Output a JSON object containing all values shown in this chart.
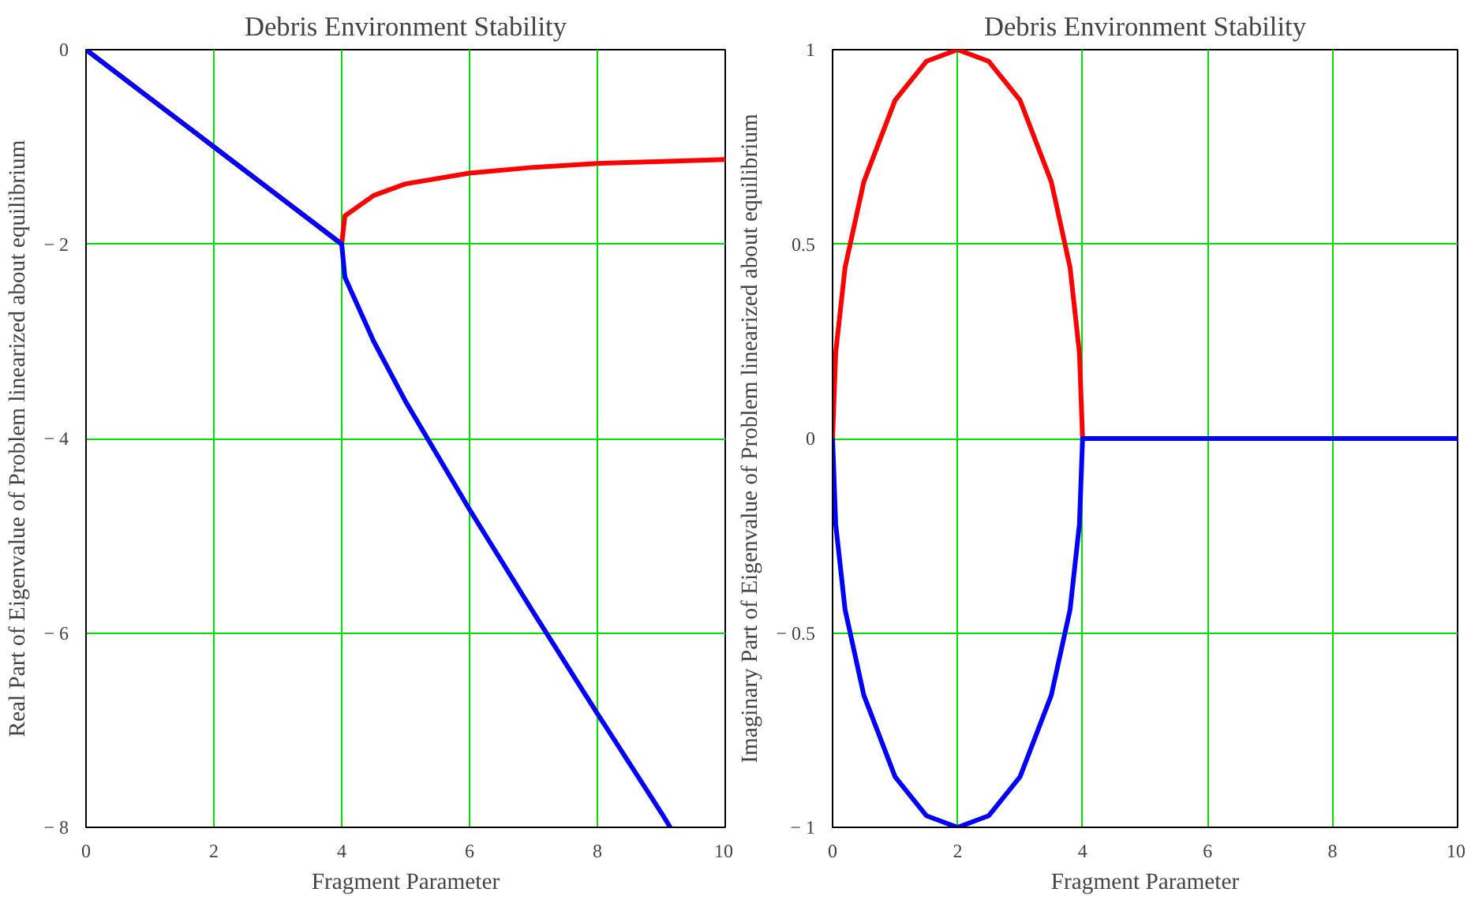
{
  "chart_data": [
    {
      "type": "line",
      "title": "Debris Environment Stability",
      "xlabel": "Fragment Parameter",
      "ylabel": "Real Part of Eigenvalue of Problem linearized about equilibrium",
      "xlim": [
        0,
        10
      ],
      "ylim": [
        -8,
        0
      ],
      "xticks": [
        0,
        2,
        4,
        6,
        8,
        10
      ],
      "yticks": [
        0,
        {
          "value": -2,
          "label": "− 2"
        },
        {
          "value": -4,
          "label": "− 4"
        },
        {
          "value": -6,
          "label": "− 6"
        },
        {
          "value": -8,
          "label": "− 8"
        }
      ],
      "grid": true,
      "series": [
        {
          "color": "#ff0000",
          "x": [
            0,
            4,
            4.05,
            4.2,
            4.5,
            5,
            6,
            7,
            8,
            9,
            10
          ],
          "values": [
            0,
            -2,
            -1.71,
            -1.64,
            -1.5,
            -1.38,
            -1.27,
            -1.21,
            -1.17,
            -1.15,
            -1.13
          ]
        },
        {
          "color": "#0000ff",
          "x": [
            0,
            1,
            2,
            3,
            4,
            4.05,
            4.2,
            4.5,
            5,
            6,
            7,
            8,
            9,
            9.14
          ],
          "values": [
            0,
            -0.5,
            -1,
            -1.5,
            -2,
            -2.34,
            -2.56,
            -3.0,
            -3.62,
            -4.73,
            -5.79,
            -6.83,
            -7.85,
            -8
          ]
        }
      ]
    },
    {
      "type": "line",
      "title": "Debris Environment Stability",
      "xlabel": "Fragment Parameter",
      "ylabel": "Imaginary Part of Eigenvalue of Problem linearized about equilibrium",
      "xlim": [
        0,
        10
      ],
      "ylim": [
        -1,
        1
      ],
      "xticks": [
        0,
        2,
        4,
        6,
        8,
        10
      ],
      "yticks": [
        1,
        0.5,
        0,
        {
          "value": -0.5,
          "label": "− 0.5"
        },
        {
          "value": -1,
          "label": "− 1"
        }
      ],
      "grid": true,
      "series": [
        {
          "color": "#ff0000",
          "x": [
            0,
            0.05,
            0.2,
            0.5,
            1,
            1.5,
            2,
            2.5,
            3,
            3.5,
            3.8,
            3.95,
            4,
            10
          ],
          "values": [
            0,
            0.22,
            0.44,
            0.66,
            0.87,
            0.97,
            1,
            0.97,
            0.87,
            0.66,
            0.44,
            0.22,
            0,
            0
          ]
        },
        {
          "color": "#0000ff",
          "x": [
            0,
            0.05,
            0.2,
            0.5,
            1,
            1.5,
            2,
            2.5,
            3,
            3.5,
            3.8,
            3.95,
            4,
            10
          ],
          "values": [
            0,
            -0.22,
            -0.44,
            -0.66,
            -0.87,
            -0.97,
            -1,
            -0.97,
            -0.87,
            -0.66,
            -0.44,
            -0.22,
            0,
            0
          ]
        }
      ]
    }
  ]
}
